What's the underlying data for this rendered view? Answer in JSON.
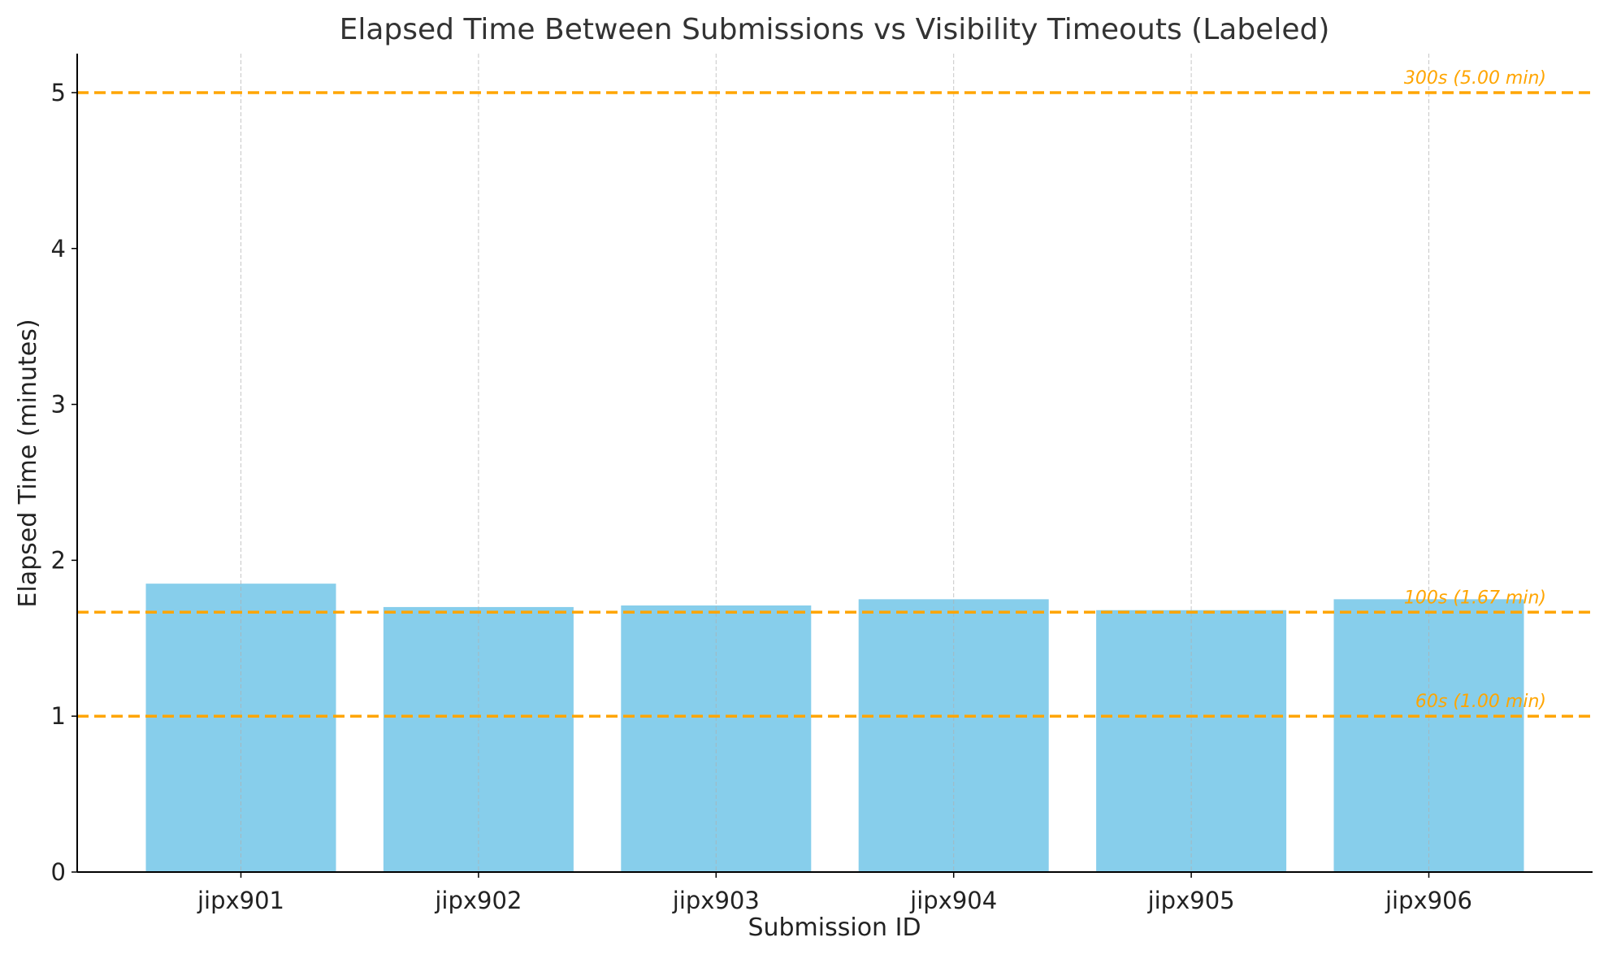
{
  "chart_data": {
    "type": "bar",
    "title": "Elapsed Time Between Submissions vs Visibility Timeouts (Labeled)",
    "xlabel": "Submission ID",
    "ylabel": "Elapsed Time (minutes)",
    "categories": [
      "jipx901",
      "jipx902",
      "jipx903",
      "jipx904",
      "jipx905",
      "jipx906"
    ],
    "values": [
      1.85,
      1.7,
      1.71,
      1.75,
      1.68,
      1.75
    ],
    "ylim": [
      0,
      5.25
    ],
    "yticks": [
      0,
      1,
      2,
      3,
      4,
      5
    ],
    "grid": "vertical, dashed, light gray",
    "bar_color": "#87CEEB",
    "reference_lines": [
      {
        "value": 5.0,
        "label": "300s (5.00 min)"
      },
      {
        "value": 1.6667,
        "label": "100s (1.67 min)"
      },
      {
        "value": 1.0,
        "label": "60s (1.00 min)"
      }
    ],
    "reference_color": "#FFA500"
  }
}
